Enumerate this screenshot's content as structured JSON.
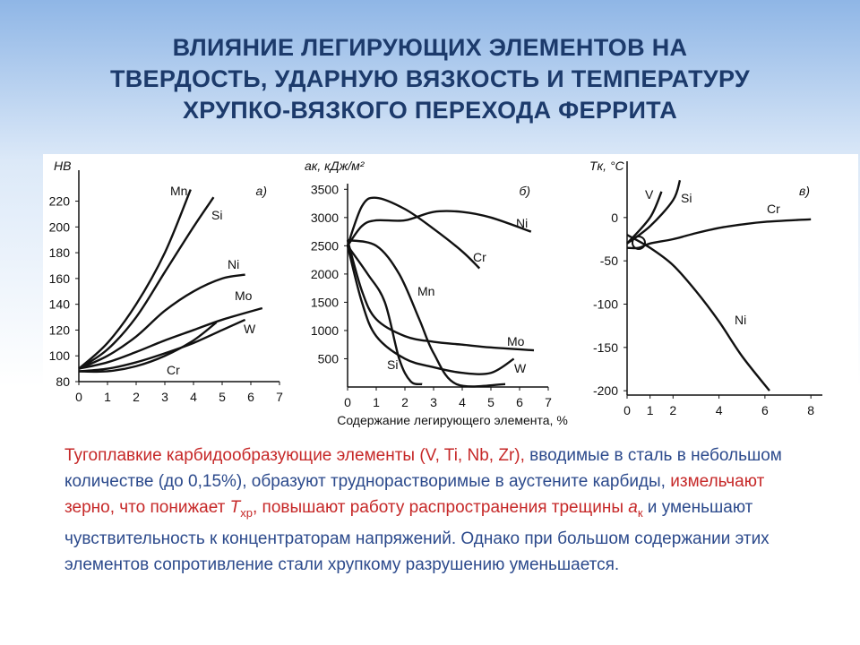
{
  "title": [
    "ВЛИЯНИЕ ЛЕГИРУЮЩИХ ЭЛЕМЕНТОВ НА",
    "ТВЕРДОСТЬ, УДАРНУЮ ВЯЗКОСТЬ И ТЕМПЕРАТУРУ",
    "ХРУПКО-ВЯЗКОГО ПЕРЕХОДА ФЕРРИТА"
  ],
  "x_label": "Содержание легирующего элемента, %",
  "chart_data": [
    {
      "type": "line",
      "annotation": "а)",
      "y_label": "НВ",
      "xlim": [
        0,
        7
      ],
      "xticks": [
        0,
        1,
        2,
        3,
        4,
        5,
        6,
        7
      ],
      "ylim": [
        80,
        244
      ],
      "yticks": [
        80,
        100,
        120,
        140,
        160,
        180,
        200,
        220
      ],
      "color": "#111111",
      "series": [
        {
          "name": "Mn",
          "x": [
            0,
            1,
            2,
            3,
            3.9
          ],
          "values": [
            90,
            110,
            140,
            180,
            229
          ]
        },
        {
          "name": "Si",
          "x": [
            0,
            1,
            2,
            3,
            4,
            4.7
          ],
          "values": [
            90,
            105,
            130,
            165,
            200,
            223
          ]
        },
        {
          "name": "Ni",
          "x": [
            0,
            1,
            2,
            3,
            4,
            5,
            5.8
          ],
          "values": [
            90,
            100,
            115,
            135,
            150,
            160,
            163
          ]
        },
        {
          "name": "Mo",
          "x": [
            0,
            1,
            2,
            3,
            4,
            5,
            6.4
          ],
          "values": [
            90,
            95,
            103,
            112,
            120,
            128,
            137
          ]
        },
        {
          "name": "W",
          "x": [
            0,
            1,
            2,
            3,
            4,
            5,
            5.8
          ],
          "values": [
            88,
            90,
            95,
            102,
            110,
            120,
            128
          ]
        },
        {
          "name": "Cr",
          "x": [
            0,
            1,
            2,
            3,
            4,
            4.8
          ],
          "values": [
            88,
            88,
            92,
            100,
            112,
            126
          ]
        }
      ]
    },
    {
      "type": "line",
      "annotation": "б)",
      "y_label": "aк, кДж/м²",
      "xlim": [
        0,
        7
      ],
      "xticks": [
        0,
        1,
        2,
        3,
        4,
        5,
        6,
        7
      ],
      "ylim": [
        0,
        3600
      ],
      "yticks": [
        500,
        1000,
        1500,
        2000,
        2500,
        3000,
        3500
      ],
      "color": "#111111",
      "series": [
        {
          "name": "Ni",
          "x": [
            0,
            0.5,
            1,
            2,
            3,
            4,
            5,
            6.4
          ],
          "values": [
            2500,
            2850,
            2950,
            2950,
            3100,
            3100,
            3000,
            2750
          ]
        },
        {
          "name": "Cr",
          "x": [
            0,
            0.5,
            1,
            2,
            3,
            4,
            4.6
          ],
          "values": [
            2500,
            3200,
            3350,
            3150,
            2800,
            2400,
            2100
          ]
        },
        {
          "name": "Mn",
          "x": [
            0,
            1,
            1.8,
            2.5,
            3,
            3.8,
            5.5
          ],
          "values": [
            2600,
            2500,
            2000,
            1200,
            600,
            50,
            50
          ]
        },
        {
          "name": "Si",
          "x": [
            0,
            0.7,
            1.3,
            1.8,
            2.2,
            2.6
          ],
          "values": [
            2500,
            2000,
            1500,
            500,
            100,
            50
          ]
        },
        {
          "name": "Mo",
          "x": [
            0,
            0.5,
            1,
            2,
            3,
            4,
            5,
            6.5
          ],
          "values": [
            2600,
            1700,
            1200,
            900,
            800,
            750,
            700,
            650
          ]
        },
        {
          "name": "W",
          "x": [
            0,
            0.5,
            1,
            2,
            3,
            4,
            5,
            5.8
          ],
          "values": [
            2500,
            1500,
            900,
            500,
            350,
            250,
            250,
            500
          ]
        }
      ]
    },
    {
      "type": "line",
      "annotation": "в)",
      "y_label": "Tк, °C",
      "xlim": [
        0,
        8.5
      ],
      "xticks": [
        0,
        1,
        2,
        4,
        6,
        8
      ],
      "ylim": [
        -205,
        65
      ],
      "yticks": [
        0,
        -50,
        -100,
        -150,
        -200
      ],
      "color": "#111111",
      "series": [
        {
          "name": "V",
          "x": [
            0,
            1,
            1.5
          ],
          "values": [
            -30,
            0,
            30
          ]
        },
        {
          "name": "Si",
          "x": [
            0,
            1,
            2,
            2.3
          ],
          "values": [
            -30,
            -10,
            20,
            43
          ]
        },
        {
          "name": "Cr",
          "x": [
            0,
            0.5,
            1,
            2,
            3,
            4,
            5,
            6,
            8
          ],
          "values": [
            -35,
            -35,
            -30,
            -25,
            -18,
            -12,
            -8,
            -5,
            -2
          ]
        },
        {
          "name": "Ni",
          "x": [
            0,
            1,
            2,
            3,
            4,
            5,
            6.2
          ],
          "values": [
            -20,
            -35,
            -55,
            -85,
            -120,
            -160,
            -200
          ]
        }
      ]
    }
  ],
  "paragraph": [
    "Тугоплавкие карбидообразующие элементы (V, Ti, Nb, Zr),",
    " вводимые в сталь в небольшом количестве (до 0,15%), образуют труднорастворимые в аустените карбиды,",
    " измельчают зерно, что понижает ",
    "T",
    "хр",
    ", повышают работу распространения трещины ",
    "a",
    "к",
    " и уменьшают чувствительность к концентраторам напряжений. Однако при большом содержании этих элементов сопротивление стали хрупкому разрушению уменьшается."
  ]
}
